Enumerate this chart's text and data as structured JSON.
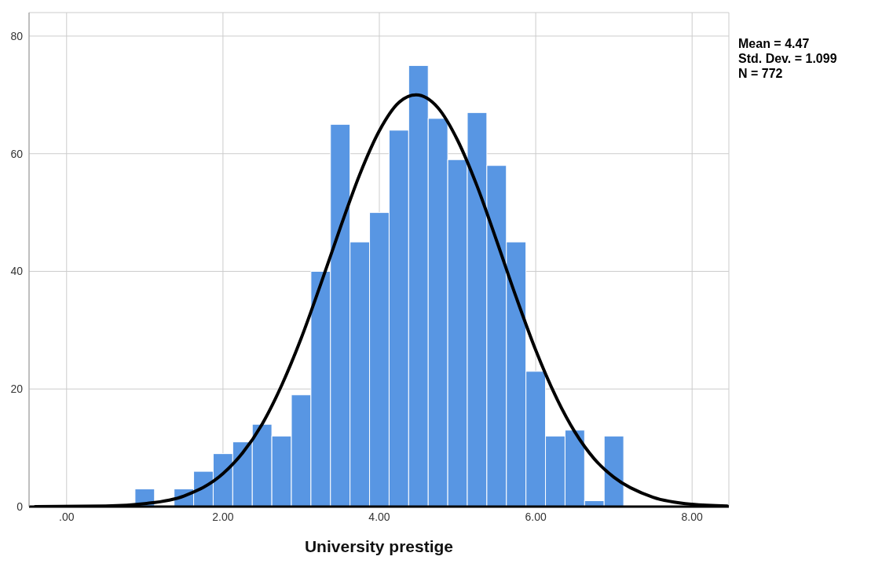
{
  "chart_data": {
    "type": "histogram",
    "xlabel": "University prestige",
    "bins": [
      0.875,
      1.125,
      1.375,
      1.625,
      1.875,
      2.125,
      2.375,
      2.625,
      2.875,
      3.125,
      3.375,
      3.625,
      3.875,
      4.125,
      4.375,
      4.625,
      4.875,
      5.125,
      5.375,
      5.625,
      5.875,
      6.125,
      6.375,
      6.625,
      6.875,
      7.125
    ],
    "values": [
      3,
      0,
      3,
      6,
      9,
      11,
      14,
      12,
      19,
      40,
      65,
      45,
      50,
      64,
      75,
      66,
      59,
      67,
      58,
      45,
      23,
      12,
      13,
      1,
      12
    ],
    "color": "#5896e3",
    "series": [
      {
        "type": "line",
        "color": "#000000",
        "x": [
          -0.4,
          0.5,
          1,
          1.5,
          2,
          2.25,
          2.5,
          2.75,
          3,
          3.25,
          3.5,
          3.75,
          4,
          4.25,
          4.47,
          4.75,
          5,
          5.25,
          5.5,
          5.75,
          6,
          6.25,
          6.5,
          6.75,
          7,
          7.5,
          8,
          8.45
        ],
        "values": [
          0,
          0.1,
          0.5,
          1.8,
          5.6,
          9.1,
          14,
          20.6,
          28.6,
          37.8,
          47.4,
          56.5,
          63.9,
          68.7,
          70,
          67.8,
          62.3,
          54.5,
          45.2,
          35.6,
          26.6,
          18.9,
          12.7,
          8.1,
          5,
          1.6,
          0.4,
          0.1
        ]
      }
    ],
    "xlim": [
      -0.48,
      8.47
    ],
    "xticks": [
      {
        "value": 0,
        "label": ".00"
      },
      {
        "value": 2,
        "label": "2.00"
      },
      {
        "value": 4,
        "label": "4.00"
      },
      {
        "value": 6,
        "label": "6.00"
      },
      {
        "value": 8,
        "label": "8.00"
      }
    ],
    "ylim": [
      0,
      84
    ],
    "yticks": [
      0,
      20,
      40,
      60,
      80
    ],
    "grid": true,
    "annotations": [
      "Mean = 4.47",
      "Std. Dev. = 1.099",
      "N = 772"
    ]
  }
}
